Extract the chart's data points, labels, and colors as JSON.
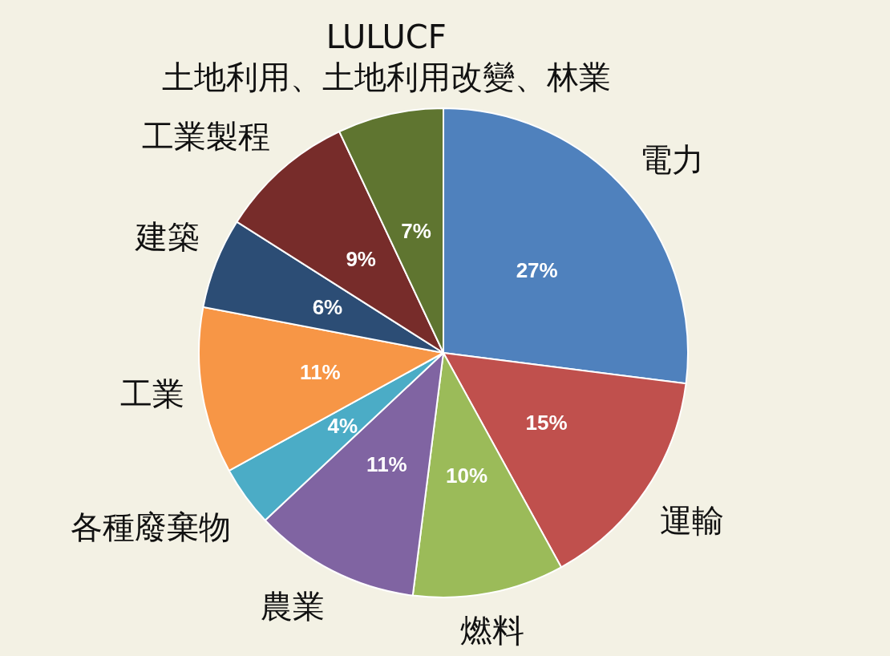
{
  "chart_data": {
    "type": "pie",
    "categories": [
      "電力",
      "運輸",
      "燃料",
      "農業",
      "各種廢棄物",
      "工業",
      "建築",
      "工業製程",
      "LULUCF\n土地利用、土地利用改變、林業"
    ],
    "values": [
      27,
      15,
      10,
      11,
      4,
      11,
      6,
      9,
      7
    ],
    "value_labels": [
      "27%",
      "15%",
      "10%",
      "11%",
      "4%",
      "11%",
      "6%",
      "9%",
      "7%"
    ],
    "colors": [
      "#4f81bd",
      "#c0504d",
      "#9bbb59",
      "#8064a2",
      "#4bacc6",
      "#f79646",
      "#2c4d75",
      "#772c2a",
      "#5f7530"
    ]
  }
}
